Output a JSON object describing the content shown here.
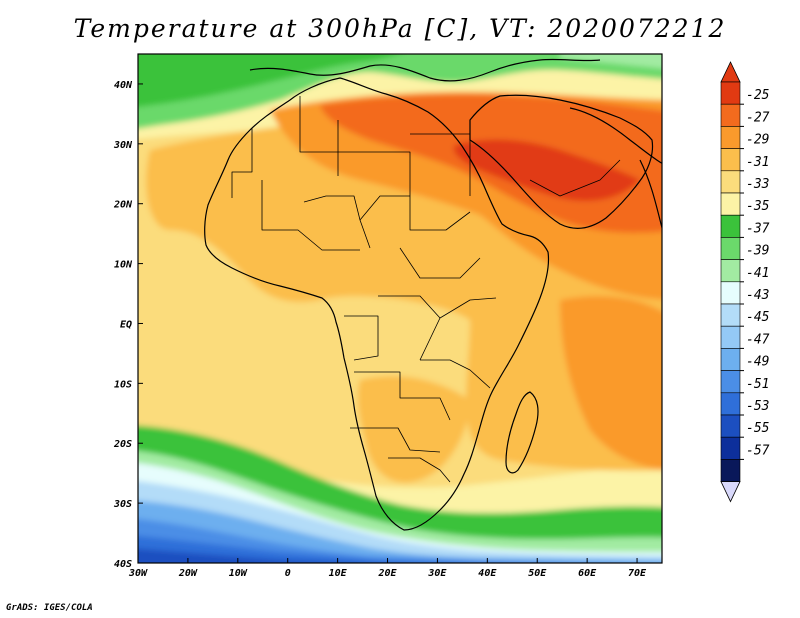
{
  "title": "Temperature at 300hPa [C], VT: 2020072212",
  "credit": "GrADS: IGES/COLA",
  "map": {
    "lon_range": [
      -30,
      75
    ],
    "lat_range": [
      -40,
      45
    ],
    "lon_ticks": [
      {
        "value": -30,
        "label": "30W"
      },
      {
        "value": -20,
        "label": "20W"
      },
      {
        "value": -10,
        "label": "10W"
      },
      {
        "value": 0,
        "label": "0"
      },
      {
        "value": 10,
        "label": "10E"
      },
      {
        "value": 20,
        "label": "20E"
      },
      {
        "value": 30,
        "label": "30E"
      },
      {
        "value": 40,
        "label": "40E"
      },
      {
        "value": 50,
        "label": "50E"
      },
      {
        "value": 60,
        "label": "60E"
      },
      {
        "value": 70,
        "label": "70E"
      }
    ],
    "lat_ticks": [
      {
        "value": 40,
        "label": "40N"
      },
      {
        "value": 30,
        "label": "30N"
      },
      {
        "value": 20,
        "label": "20N"
      },
      {
        "value": 10,
        "label": "10N"
      },
      {
        "value": 0,
        "label": "EQ"
      },
      {
        "value": -10,
        "label": "10S"
      },
      {
        "value": -20,
        "label": "20S"
      },
      {
        "value": -30,
        "label": "30S"
      },
      {
        "value": -40,
        "label": "40S"
      }
    ]
  },
  "colorbar": {
    "levels": [
      "-25",
      "-27",
      "-29",
      "-31",
      "-33",
      "-35",
      "-37",
      "-39",
      "-41",
      "-43",
      "-45",
      "-47",
      "-49",
      "-51",
      "-53",
      "-55",
      "-57"
    ],
    "colors": [
      "#e13a12",
      "#f36b1e",
      "#fa9a2c",
      "#fbbe4c",
      "#fbdc7c",
      "#fcf3a6",
      "#3bc23b",
      "#6bd96b",
      "#a2eba2",
      "#e6fdfd",
      "#b3dcf8",
      "#94c9f6",
      "#6dafef",
      "#4b8ee6",
      "#2f6fd9",
      "#1c4fc0",
      "#0d2f9b",
      "#09185a"
    ],
    "top_arrow_color": "#e13a12",
    "bottom_arrow_color": "#d9d9fb"
  }
}
